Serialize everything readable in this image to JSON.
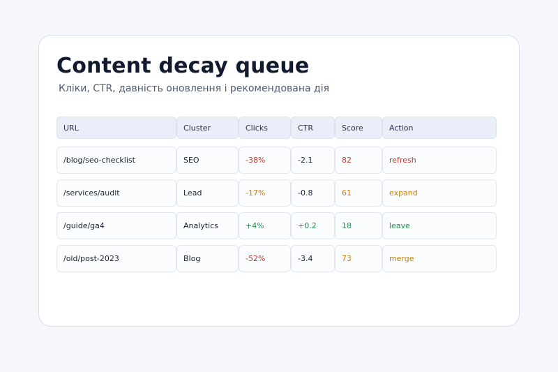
{
  "title": "Content decay queue",
  "subtitle": "Кліки, CTR, давність оновлення і рекомендована дія",
  "colors": {
    "red": "#c0392b",
    "amber": "#c47f0a",
    "green": "#1e9150"
  },
  "table": {
    "headers": [
      "URL",
      "Cluster",
      "Clicks",
      "CTR",
      "Score",
      "Action"
    ],
    "rows": [
      {
        "url": "/blog/seo-checklist",
        "cluster": "SEO",
        "clicks": "-38%",
        "ctr": "-2.1",
        "score": "82",
        "action": "refresh"
      },
      {
        "url": "/services/audit",
        "cluster": "Lead",
        "clicks": "-17%",
        "ctr": "-0.8",
        "score": "61",
        "action": "expand"
      },
      {
        "url": "/guide/ga4",
        "cluster": "Analytics",
        "clicks": "+4%",
        "ctr": "+0.2",
        "score": "18",
        "action": "leave"
      },
      {
        "url": "/old/post-2023",
        "cluster": "Blog",
        "clicks": "-52%",
        "ctr": "-3.4",
        "score": "73",
        "action": "merge"
      }
    ]
  }
}
